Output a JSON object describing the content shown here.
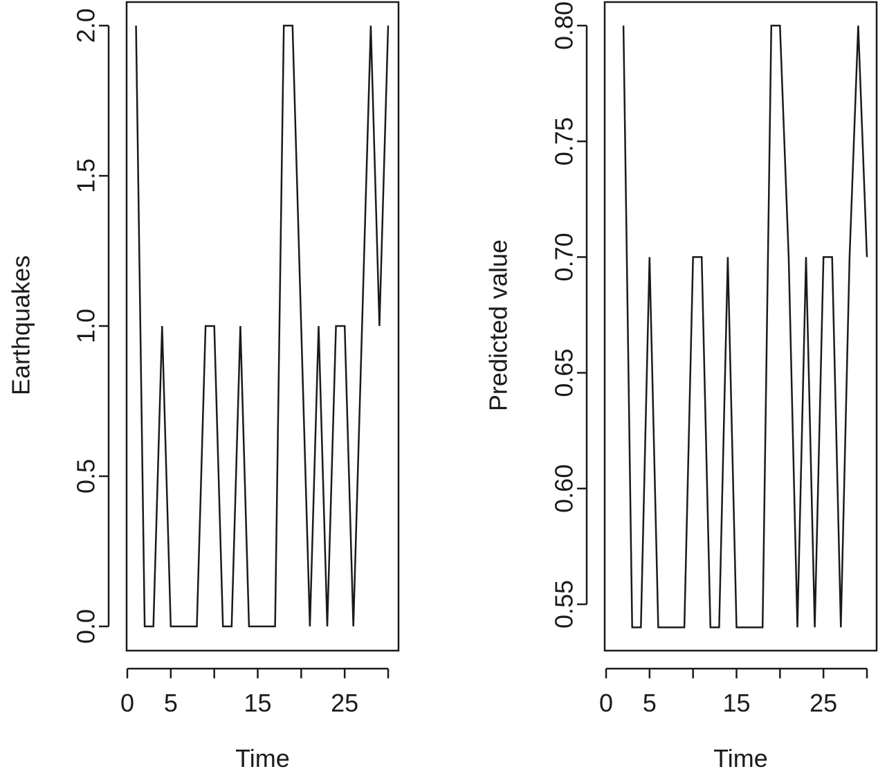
{
  "chart_data": [
    {
      "type": "line",
      "xlabel": "Time",
      "ylabel": "Earthquakes",
      "xlim": [
        0,
        30
      ],
      "ylim": [
        0,
        2
      ],
      "x_ticks": [
        0,
        5,
        10,
        15,
        20,
        25,
        30
      ],
      "x_tick_labels": [
        "0",
        "5",
        "",
        "15",
        "",
        "25",
        ""
      ],
      "y_ticks": [
        0,
        0.5,
        1,
        1.5,
        2
      ],
      "y_tick_labels": [
        "0.0",
        "0.5",
        "1.0",
        "1.5",
        "2.0"
      ],
      "grid": false,
      "x": [
        1,
        2,
        3,
        4,
        5,
        6,
        7,
        8,
        9,
        10,
        11,
        12,
        13,
        14,
        15,
        16,
        17,
        18,
        19,
        20,
        21,
        22,
        23,
        24,
        25,
        26,
        27,
        28,
        29,
        30
      ],
      "values": [
        2,
        0,
        0,
        1,
        0,
        0,
        0,
        0,
        1,
        1,
        0,
        0,
        1,
        0,
        0,
        0,
        0,
        2,
        2,
        1,
        0,
        1,
        0,
        1,
        1,
        0,
        1,
        2,
        1,
        2
      ]
    },
    {
      "type": "line",
      "xlabel": "Time",
      "ylabel": "Predicted value",
      "xlim": [
        0,
        30
      ],
      "ylim": [
        0.53,
        0.8
      ],
      "x_ticks": [
        0,
        5,
        10,
        15,
        20,
        25,
        30
      ],
      "x_tick_labels": [
        "0",
        "5",
        "",
        "15",
        "",
        "25",
        ""
      ],
      "y_ticks": [
        0.55,
        0.6,
        0.65,
        0.7,
        0.75,
        0.8
      ],
      "y_tick_labels": [
        "0.55",
        "0.60",
        "0.65",
        "0.70",
        "0.75",
        "0.80"
      ],
      "grid": false,
      "x": [
        2,
        3,
        4,
        5,
        6,
        7,
        8,
        9,
        10,
        11,
        12,
        13,
        14,
        15,
        16,
        17,
        18,
        19,
        20,
        21,
        22,
        23,
        24,
        25,
        26,
        27,
        28,
        29,
        30
      ],
      "values": [
        0.8,
        0.54,
        0.54,
        0.7,
        0.54,
        0.54,
        0.54,
        0.54,
        0.7,
        0.7,
        0.54,
        0.54,
        0.7,
        0.54,
        0.54,
        0.54,
        0.54,
        0.8,
        0.8,
        0.7,
        0.54,
        0.7,
        0.54,
        0.7,
        0.7,
        0.54,
        0.7,
        0.8,
        0.7
      ]
    }
  ]
}
